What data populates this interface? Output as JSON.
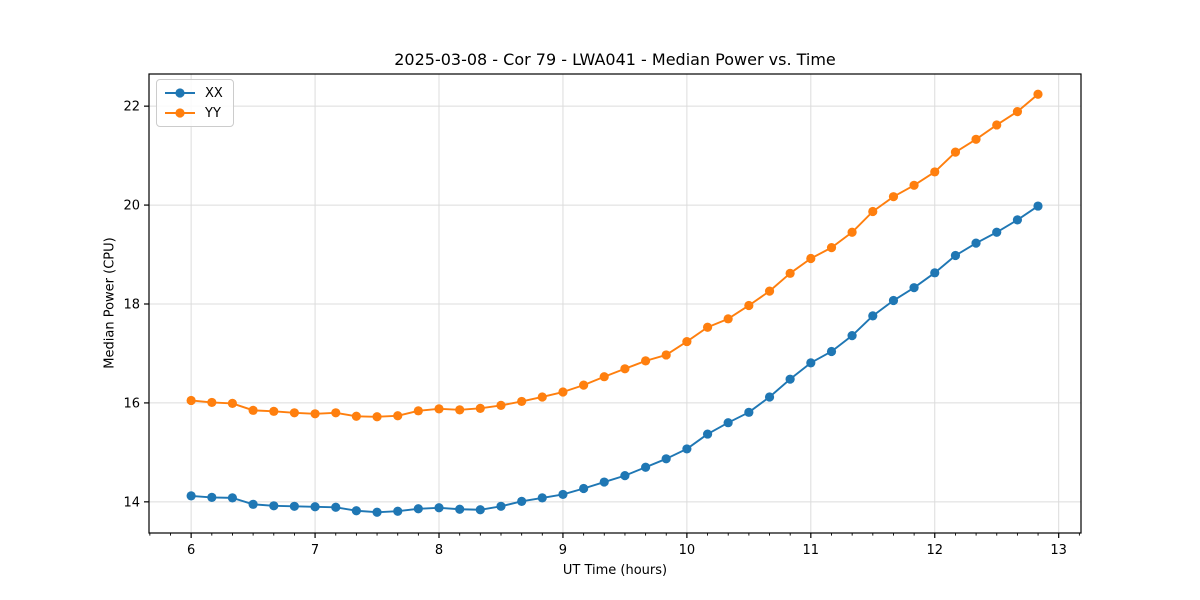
{
  "figure": {
    "title": "2025-03-08 - Cor 79 - LWA041 - Median Power vs. Time",
    "xlabel": "UT Time (hours)",
    "ylabel": "Median Power (CPU)"
  },
  "chart_data": {
    "type": "line",
    "title": "2025-03-08 - Cor 79 - LWA041 - Median Power vs. Time",
    "xlabel": "UT Time (hours)",
    "ylabel": "Median Power (CPU)",
    "grid": true,
    "legend_position": "upper-left",
    "xlim": [
      5.66,
      13.18
    ],
    "ylim": [
      13.37,
      22.65
    ],
    "x_ticks": [
      6,
      7,
      8,
      9,
      10,
      11,
      12,
      13
    ],
    "y_ticks": [
      14,
      16,
      18,
      20,
      22
    ],
    "x_minor_tick_step": 0.16667,
    "marker": "circle",
    "x": [
      6.0,
      6.167,
      6.333,
      6.5,
      6.667,
      6.833,
      7.0,
      7.167,
      7.333,
      7.5,
      7.667,
      7.833,
      8.0,
      8.167,
      8.333,
      8.5,
      8.667,
      8.833,
      9.0,
      9.167,
      9.333,
      9.5,
      9.667,
      9.833,
      10.0,
      10.167,
      10.333,
      10.5,
      10.667,
      10.833,
      11.0,
      11.167,
      11.333,
      11.5,
      11.667,
      11.833,
      12.0,
      12.167,
      12.333,
      12.5,
      12.667,
      12.833
    ],
    "series": [
      {
        "name": "XX",
        "color": "#1f77b4",
        "values": [
          14.12,
          14.09,
          14.08,
          13.95,
          13.92,
          13.91,
          13.9,
          13.89,
          13.82,
          13.79,
          13.81,
          13.86,
          13.88,
          13.85,
          13.84,
          13.91,
          14.01,
          14.08,
          14.15,
          14.27,
          14.4,
          14.53,
          14.7,
          14.87,
          15.07,
          15.37,
          15.6,
          15.81,
          16.12,
          16.48,
          16.81,
          17.04,
          17.36,
          17.76,
          18.07,
          18.33,
          18.63,
          18.98,
          19.23,
          19.45,
          19.7,
          19.98
        ]
      },
      {
        "name": "YY",
        "color": "#ff7f0e",
        "values": [
          16.05,
          16.01,
          15.99,
          15.85,
          15.83,
          15.8,
          15.78,
          15.8,
          15.73,
          15.72,
          15.74,
          15.84,
          15.88,
          15.86,
          15.89,
          15.95,
          16.03,
          16.12,
          16.22,
          16.36,
          16.53,
          16.69,
          16.85,
          16.97,
          17.24,
          17.53,
          17.7,
          17.97,
          18.26,
          18.62,
          18.92,
          19.14,
          19.45,
          19.87,
          20.17,
          20.4,
          20.67,
          21.07,
          21.33,
          21.62,
          21.89,
          22.24
        ]
      }
    ],
    "style": {
      "grid_color": "#dcdcdc",
      "spine_color": "#000000",
      "tick_label_color": "#000000"
    }
  }
}
